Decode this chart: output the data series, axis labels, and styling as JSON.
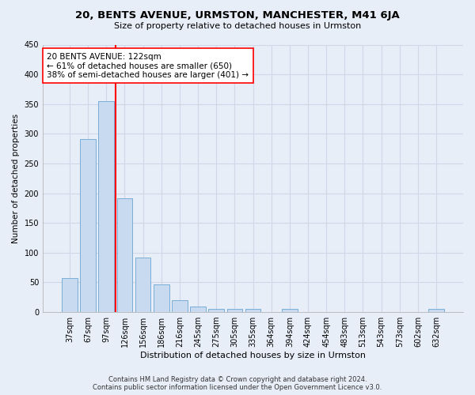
{
  "title": "20, BENTS AVENUE, URMSTON, MANCHESTER, M41 6JA",
  "subtitle": "Size of property relative to detached houses in Urmston",
  "xlabel": "Distribution of detached houses by size in Urmston",
  "ylabel": "Number of detached properties",
  "footer": "Contains HM Land Registry data © Crown copyright and database right 2024.\nContains public sector information licensed under the Open Government Licence v3.0.",
  "bar_labels": [
    "37sqm",
    "67sqm",
    "97sqm",
    "126sqm",
    "156sqm",
    "186sqm",
    "216sqm",
    "245sqm",
    "275sqm",
    "305sqm",
    "335sqm",
    "364sqm",
    "394sqm",
    "424sqm",
    "454sqm",
    "483sqm",
    "513sqm",
    "543sqm",
    "573sqm",
    "602sqm",
    "632sqm"
  ],
  "bar_values": [
    57,
    291,
    355,
    192,
    92,
    47,
    20,
    9,
    5,
    5,
    5,
    0,
    5,
    0,
    0,
    0,
    0,
    0,
    0,
    0,
    5
  ],
  "bar_color": "#c8daef",
  "bar_edge_color": "#7aaed6",
  "grid_color": "#d0d8e8",
  "vline_index": 2,
  "vline_color": "red",
  "annotation_text": "20 BENTS AVENUE: 122sqm\n← 61% of detached houses are smaller (650)\n38% of semi-detached houses are larger (401) →",
  "annotation_box_color": "white",
  "annotation_box_edge": "red",
  "ylim": [
    0,
    450
  ],
  "yticks": [
    0,
    50,
    100,
    150,
    200,
    250,
    300,
    350,
    400,
    450
  ],
  "bg_color": "#e8eef8",
  "plot_bg_color": "#e8eef8",
  "title_fontsize": 9.5,
  "subtitle_fontsize": 8,
  "xlabel_fontsize": 8,
  "ylabel_fontsize": 7.5,
  "tick_fontsize": 7,
  "footer_fontsize": 6,
  "ann_fontsize": 7.5
}
